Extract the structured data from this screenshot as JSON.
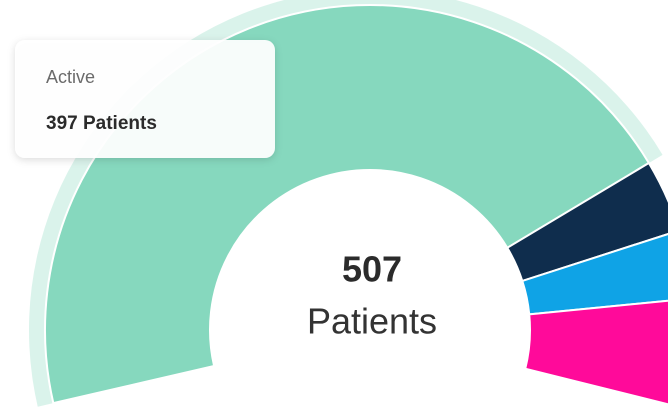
{
  "chart_data": {
    "type": "donut",
    "values": [
      397,
      32,
      30,
      48
    ],
    "colors": [
      "#86d8be",
      "#0f2d4d",
      "#0fa3e6",
      "#ff0a9a"
    ],
    "center_value": 507,
    "center_label": "Patients",
    "tooltip": {
      "title": "Active",
      "text": "397 Patients"
    }
  }
}
